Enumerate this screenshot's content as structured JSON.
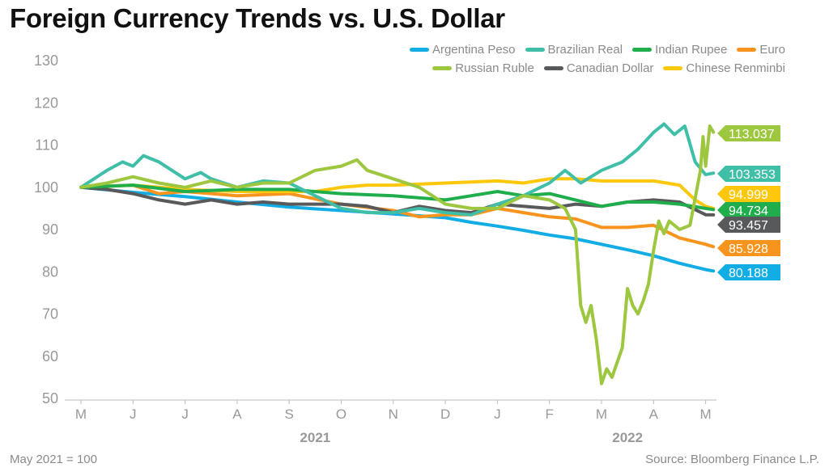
{
  "chart_data": {
    "type": "line",
    "title": "Foreign Currency Trends vs. U.S. Dollar",
    "note": "May 2021 = 100",
    "source": "Source: Bloomberg Finance L.P.",
    "ylim": [
      50,
      130
    ],
    "yticks": [
      50,
      60,
      70,
      80,
      90,
      100,
      110,
      120,
      130
    ],
    "xticks": [
      "M",
      "J",
      "J",
      "A",
      "S",
      "O",
      "N",
      "D",
      "J",
      "F",
      "M",
      "A",
      "M"
    ],
    "years": [
      {
        "label": "2021",
        "at": 4.5
      },
      {
        "label": "2022",
        "at": 10.5
      }
    ],
    "grid": false,
    "legend": "top-right",
    "series": [
      {
        "name": "Argentina Peso",
        "color": "#13ade6",
        "end_label": "80.188",
        "points": [
          [
            0,
            100
          ],
          [
            1,
            98.8
          ],
          [
            2,
            97.8
          ],
          [
            3,
            96.5
          ],
          [
            4,
            95.3
          ],
          [
            5,
            94.5
          ],
          [
            6,
            93.7
          ],
          [
            7,
            92.8
          ],
          [
            7.5,
            91.7
          ],
          [
            8,
            90.8
          ],
          [
            8.5,
            89.8
          ],
          [
            9,
            88.7
          ],
          [
            9.5,
            87.8
          ],
          [
            10,
            86.5
          ],
          [
            10.5,
            85.2
          ],
          [
            11,
            83.8
          ],
          [
            11.5,
            82
          ],
          [
            12,
            80.5
          ],
          [
            12.15,
            80.188
          ]
        ]
      },
      {
        "name": "Brazilian Real",
        "color": "#40bfa8",
        "end_label": "103.353",
        "points": [
          [
            0,
            100
          ],
          [
            0.5,
            104
          ],
          [
            0.8,
            106
          ],
          [
            1,
            105
          ],
          [
            1.2,
            107.5
          ],
          [
            1.5,
            106
          ],
          [
            2,
            102
          ],
          [
            2.3,
            103.5
          ],
          [
            2.5,
            102
          ],
          [
            3,
            100
          ],
          [
            3.5,
            101.5
          ],
          [
            4,
            101
          ],
          [
            4.5,
            98
          ],
          [
            5,
            95
          ],
          [
            5.5,
            94
          ],
          [
            6,
            94
          ],
          [
            6.5,
            95
          ],
          [
            7,
            94
          ],
          [
            7.5,
            93.5
          ],
          [
            8,
            96
          ],
          [
            8.5,
            98
          ],
          [
            9,
            101
          ],
          [
            9.3,
            104
          ],
          [
            9.6,
            101
          ],
          [
            10,
            104
          ],
          [
            10.4,
            106
          ],
          [
            10.7,
            109
          ],
          [
            11,
            113
          ],
          [
            11.2,
            115
          ],
          [
            11.4,
            112.5
          ],
          [
            11.6,
            114.5
          ],
          [
            11.8,
            106
          ],
          [
            12,
            103
          ],
          [
            12.15,
            103.353
          ]
        ]
      },
      {
        "name": "Indian Rupee",
        "color": "#1fae4b",
        "end_label": "94.734",
        "points": [
          [
            0,
            100
          ],
          [
            1,
            100.5
          ],
          [
            2,
            99
          ],
          [
            3,
            99.5
          ],
          [
            4,
            99.5
          ],
          [
            5,
            98.5
          ],
          [
            6,
            98
          ],
          [
            7,
            97
          ],
          [
            7.5,
            98
          ],
          [
            8,
            99
          ],
          [
            8.5,
            98
          ],
          [
            9,
            98.5
          ],
          [
            9.5,
            97
          ],
          [
            10,
            95.5
          ],
          [
            10.5,
            96.5
          ],
          [
            11,
            96.5
          ],
          [
            11.5,
            96
          ],
          [
            12,
            95
          ],
          [
            12.15,
            94.734
          ]
        ]
      },
      {
        "name": "Euro",
        "color": "#f7941d",
        "end_label": "85.928",
        "points": [
          [
            0,
            100
          ],
          [
            1,
            100.5
          ],
          [
            1.5,
            98.5
          ],
          [
            2,
            99
          ],
          [
            3,
            98
          ],
          [
            4,
            98.5
          ],
          [
            5,
            96
          ],
          [
            6,
            94.5
          ],
          [
            6.5,
            93
          ],
          [
            7,
            93.5
          ],
          [
            7.5,
            93.5
          ],
          [
            8,
            95
          ],
          [
            8.5,
            94
          ],
          [
            9,
            93
          ],
          [
            9.5,
            92.5
          ],
          [
            10,
            90.5
          ],
          [
            10.5,
            90.5
          ],
          [
            11,
            91
          ],
          [
            11.5,
            88
          ],
          [
            12,
            86.5
          ],
          [
            12.15,
            85.928
          ]
        ]
      },
      {
        "name": "Russian Ruble",
        "color": "#9ec740",
        "end_label": "113.037",
        "points": [
          [
            0,
            100
          ],
          [
            0.5,
            101
          ],
          [
            1,
            102.5
          ],
          [
            1.5,
            101
          ],
          [
            2,
            100
          ],
          [
            2.5,
            101.5
          ],
          [
            3,
            100
          ],
          [
            3.5,
            101
          ],
          [
            4,
            101
          ],
          [
            4.5,
            104
          ],
          [
            5,
            105
          ],
          [
            5.3,
            106.5
          ],
          [
            5.5,
            104
          ],
          [
            6,
            102
          ],
          [
            6.5,
            100
          ],
          [
            7,
            96
          ],
          [
            7.5,
            95
          ],
          [
            8,
            95
          ],
          [
            8.5,
            98
          ],
          [
            9,
            97
          ],
          [
            9.3,
            95
          ],
          [
            9.5,
            90
          ],
          [
            9.6,
            72
          ],
          [
            9.7,
            68
          ],
          [
            9.8,
            72
          ],
          [
            9.9,
            64
          ],
          [
            10,
            53.5
          ],
          [
            10.1,
            57
          ],
          [
            10.2,
            55
          ],
          [
            10.4,
            62
          ],
          [
            10.5,
            76
          ],
          [
            10.6,
            72
          ],
          [
            10.7,
            70
          ],
          [
            10.8,
            73
          ],
          [
            10.9,
            77
          ],
          [
            11,
            85
          ],
          [
            11.1,
            92
          ],
          [
            11.2,
            89
          ],
          [
            11.3,
            92
          ],
          [
            11.5,
            90
          ],
          [
            11.7,
            91
          ],
          [
            11.9,
            104
          ],
          [
            11.95,
            112
          ],
          [
            12,
            105
          ],
          [
            12.08,
            114.5
          ],
          [
            12.15,
            113.037
          ]
        ]
      },
      {
        "name": "Canadian Dollar",
        "color": "#58595b",
        "end_label": "93.457",
        "points": [
          [
            0,
            100
          ],
          [
            0.5,
            99.5
          ],
          [
            1,
            98.5
          ],
          [
            1.5,
            97
          ],
          [
            2,
            96
          ],
          [
            2.5,
            97
          ],
          [
            3,
            96
          ],
          [
            3.5,
            96.5
          ],
          [
            4,
            96
          ],
          [
            5,
            96
          ],
          [
            5.5,
            95.5
          ],
          [
            6,
            94
          ],
          [
            6.5,
            95.5
          ],
          [
            7,
            94.5
          ],
          [
            7.5,
            94
          ],
          [
            8,
            96
          ],
          [
            8.5,
            95.5
          ],
          [
            9,
            95
          ],
          [
            9.5,
            96
          ],
          [
            10,
            95.5
          ],
          [
            10.5,
            96.5
          ],
          [
            11,
            97
          ],
          [
            11.5,
            96.5
          ],
          [
            12,
            93.5
          ],
          [
            12.15,
            93.457
          ]
        ]
      },
      {
        "name": "Chinese Renminbi",
        "color": "#fdc70c",
        "end_label": "94.999",
        "points": [
          [
            0,
            100
          ],
          [
            1,
            100.5
          ],
          [
            2,
            99.5
          ],
          [
            3,
            99
          ],
          [
            4.5,
            99
          ],
          [
            5,
            100
          ],
          [
            5.5,
            100.5
          ],
          [
            6,
            100.5
          ],
          [
            7,
            101
          ],
          [
            8,
            101.5
          ],
          [
            8.5,
            101
          ],
          [
            9,
            102
          ],
          [
            9.5,
            102
          ],
          [
            10,
            101.5
          ],
          [
            11,
            101.5
          ],
          [
            11.5,
            100.5
          ],
          [
            11.8,
            97
          ],
          [
            12,
            95.5
          ],
          [
            12.15,
            94.999
          ]
        ]
      }
    ]
  }
}
